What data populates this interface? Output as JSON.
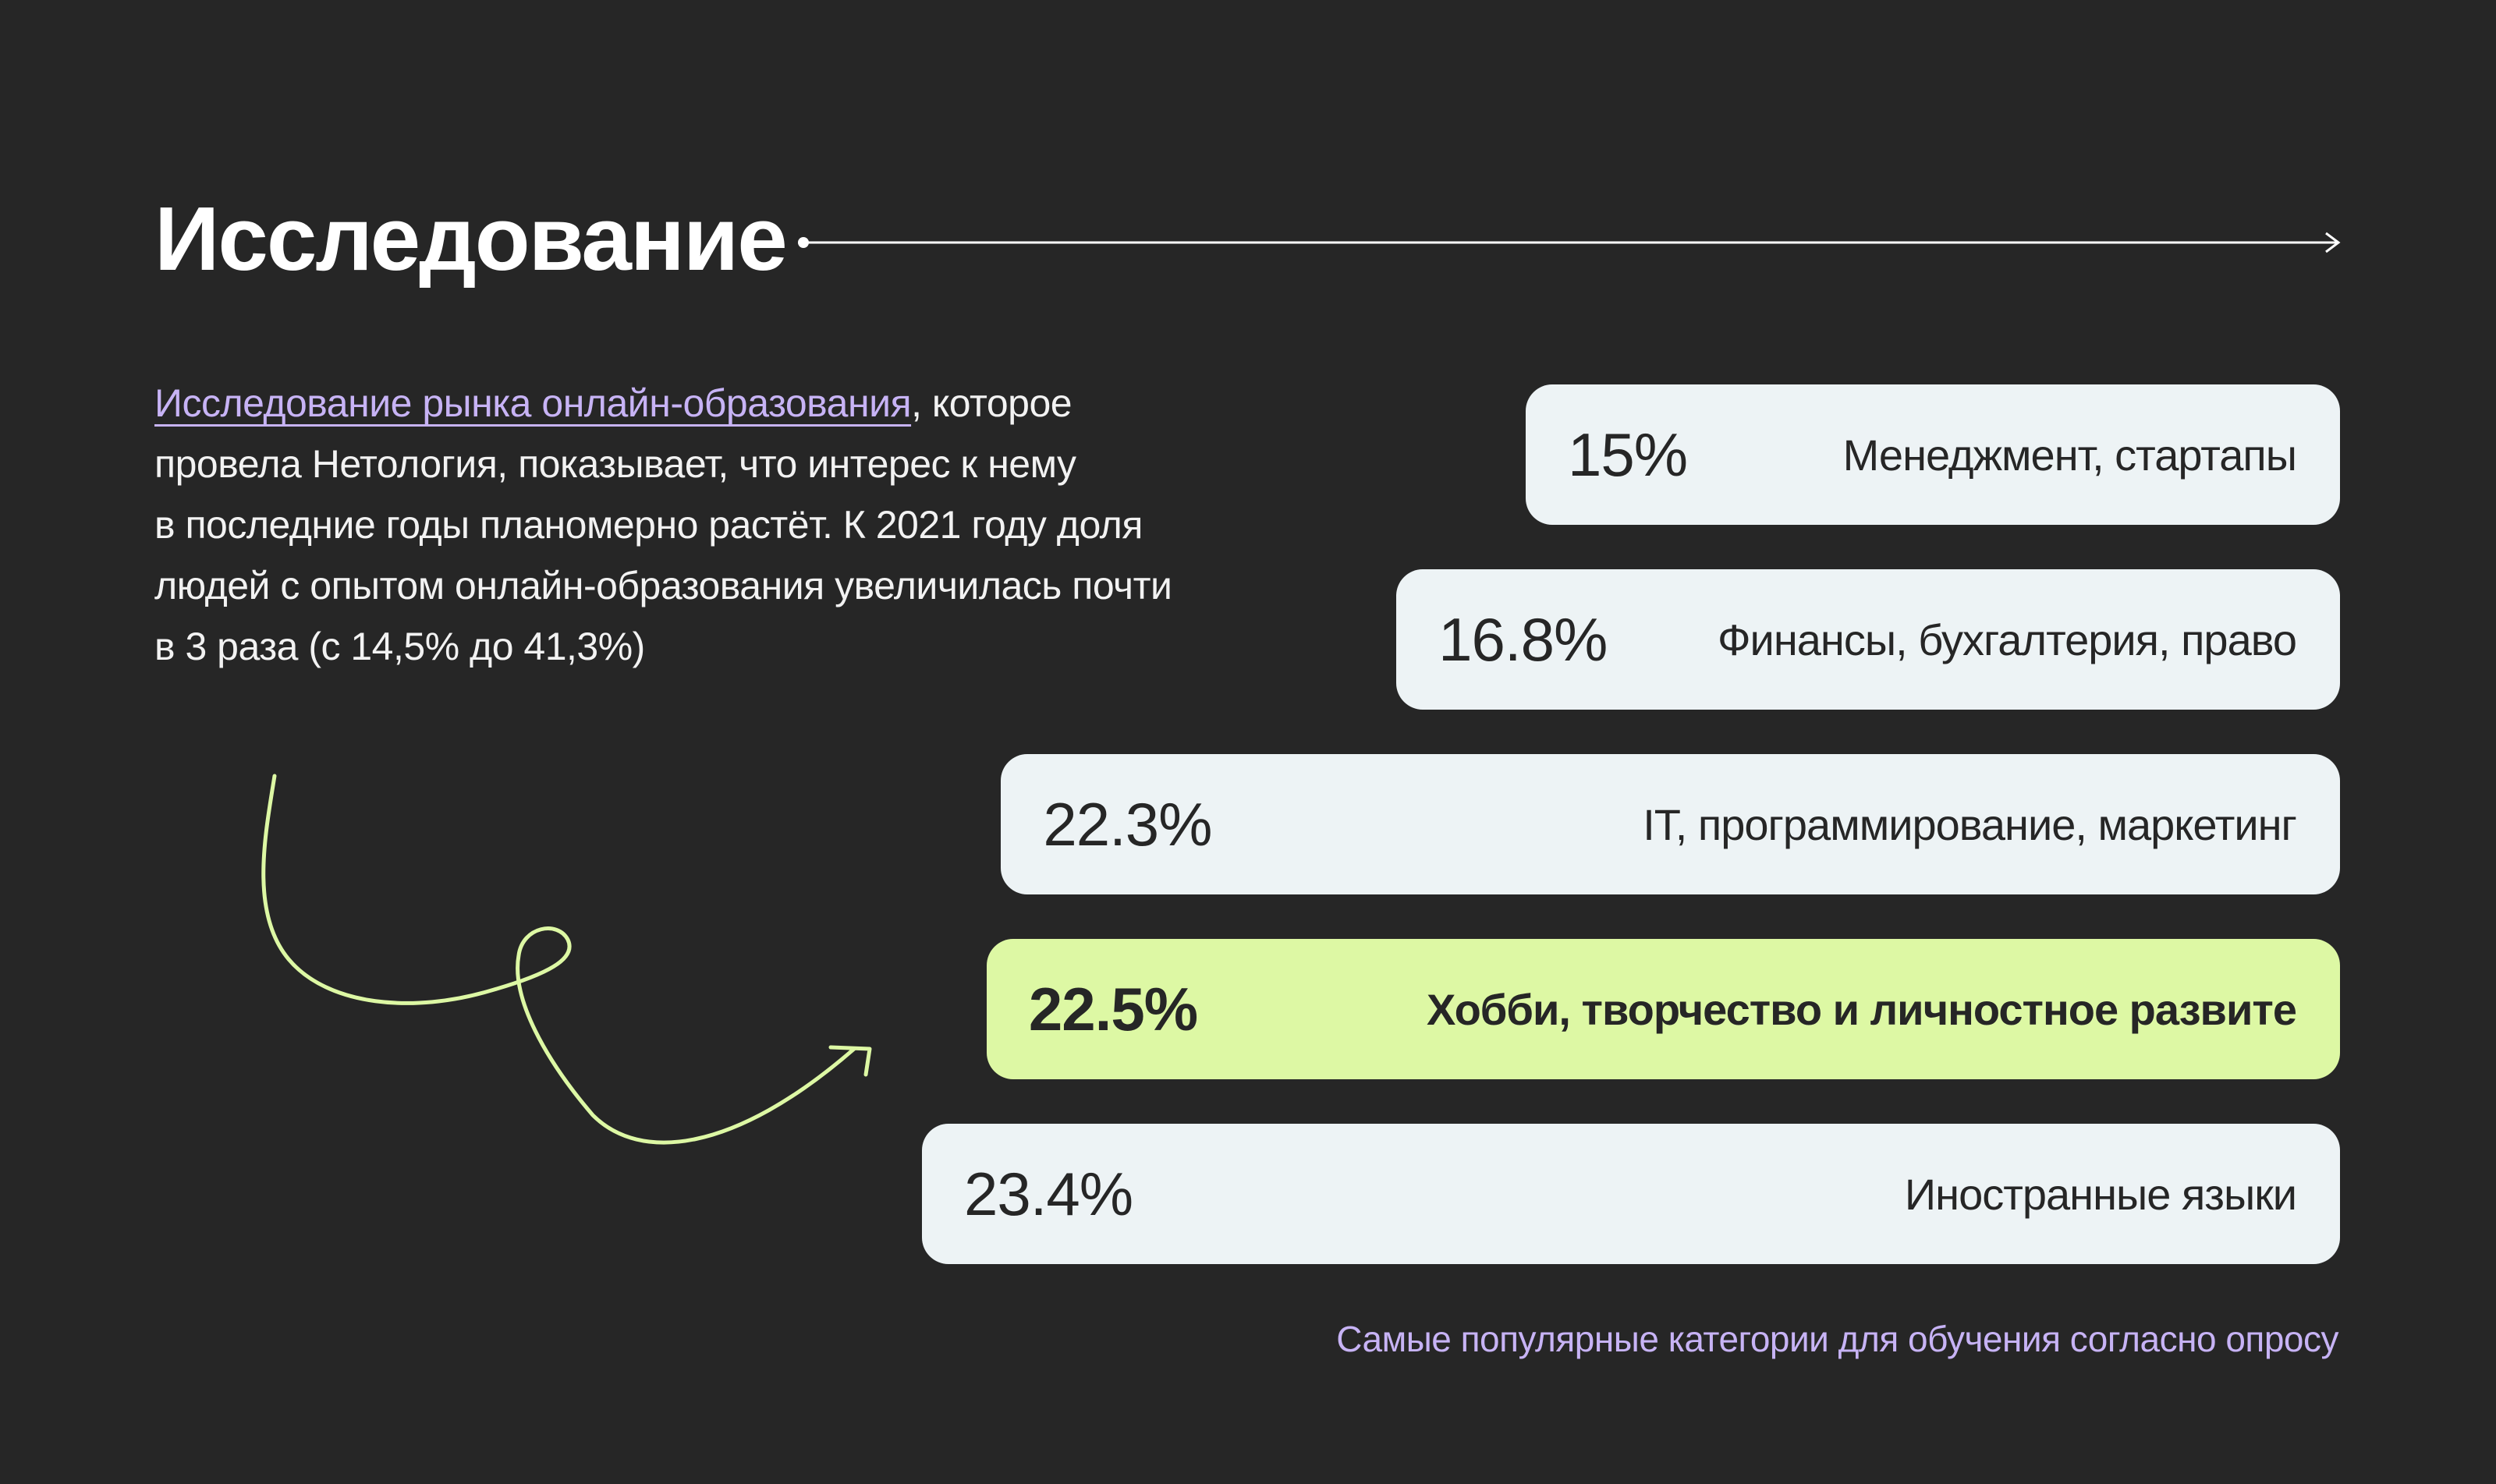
{
  "header": {
    "title": "Исследование"
  },
  "intro": {
    "link_text": "Исследование рынка онлайн-образования",
    "line1_rest": ", которое",
    "line2": "провела Нетология, показывает, что интерес к нему",
    "line3": "в последние годы планомерно растёт. К 2021 году доля",
    "line4": "людей с опытом онлайн-образования увеличилась почти",
    "line5": "в 3 раза (с 14,5% до 41,3%)"
  },
  "colors": {
    "background": "#262626",
    "bar": "#edf3f5",
    "highlight_bar": "#ddf8a4",
    "accent_purple": "#c7b3f5",
    "squiggle": "#ddf8a4"
  },
  "chart_data": {
    "type": "bar",
    "orientation": "horizontal",
    "title": "",
    "caption": "Самые популярные категории для обучения согласно опросу",
    "categories": [
      "Менеджмент, стартапы",
      "Финансы, бухгалтерия, право",
      "IT, программирование, маркетинг",
      "Хобби, творчество и личностное развите",
      "Иностранные языки"
    ],
    "values": [
      15,
      16.8,
      22.3,
      22.5,
      23.4
    ],
    "value_labels": [
      "15%",
      "16.8%",
      "22.3%",
      "22.5%",
      "23.4%"
    ],
    "highlighted_index": 3,
    "unit": "%",
    "grid": false,
    "legend": "none"
  }
}
